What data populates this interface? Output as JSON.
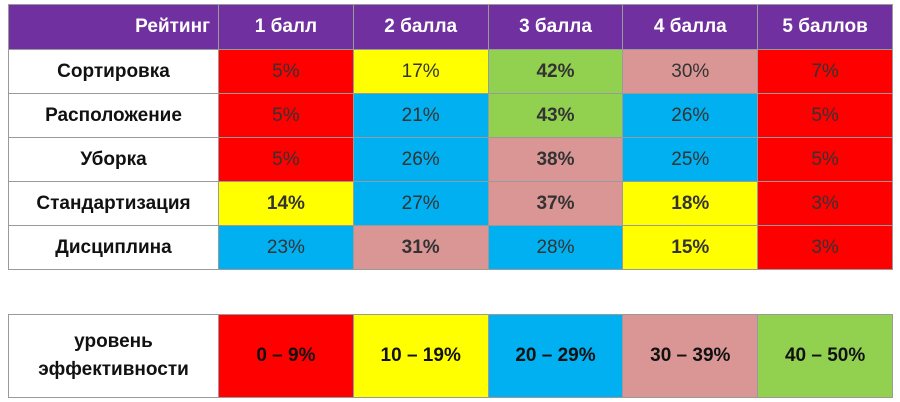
{
  "chart_data": {
    "type": "table",
    "corner_label": "Рейтинг",
    "columns": [
      "1 балл",
      "2 балла",
      "3 балла",
      "4 балла",
      "5 баллов"
    ],
    "rows": [
      {
        "label": "Сортировка",
        "values": [
          "5%",
          "17%",
          "42%",
          "30%",
          "7%"
        ]
      },
      {
        "label": "Расположение",
        "values": [
          "5%",
          "21%",
          "43%",
          "26%",
          "5%"
        ]
      },
      {
        "label": "Уборка",
        "values": [
          "5%",
          "26%",
          "38%",
          "25%",
          "5%"
        ]
      },
      {
        "label": "Стандартизация",
        "values": [
          "14%",
          "27%",
          "37%",
          "18%",
          "3%"
        ]
      },
      {
        "label": "Дисциплина",
        "values": [
          "23%",
          "31%",
          "28%",
          "15%",
          "3%"
        ]
      }
    ],
    "legend": {
      "label_line1": "уровень",
      "label_line2": "эффективности",
      "ranges": [
        {
          "text": "0 – 9%",
          "color": "#ff0000"
        },
        {
          "text": "10 – 19%",
          "color": "#ffff00"
        },
        {
          "text": "20 – 29%",
          "color": "#00b0f0"
        },
        {
          "text": "30 – 39%",
          "color": "#d99694"
        },
        {
          "text": "40 – 50%",
          "color": "#92d050"
        }
      ]
    }
  }
}
